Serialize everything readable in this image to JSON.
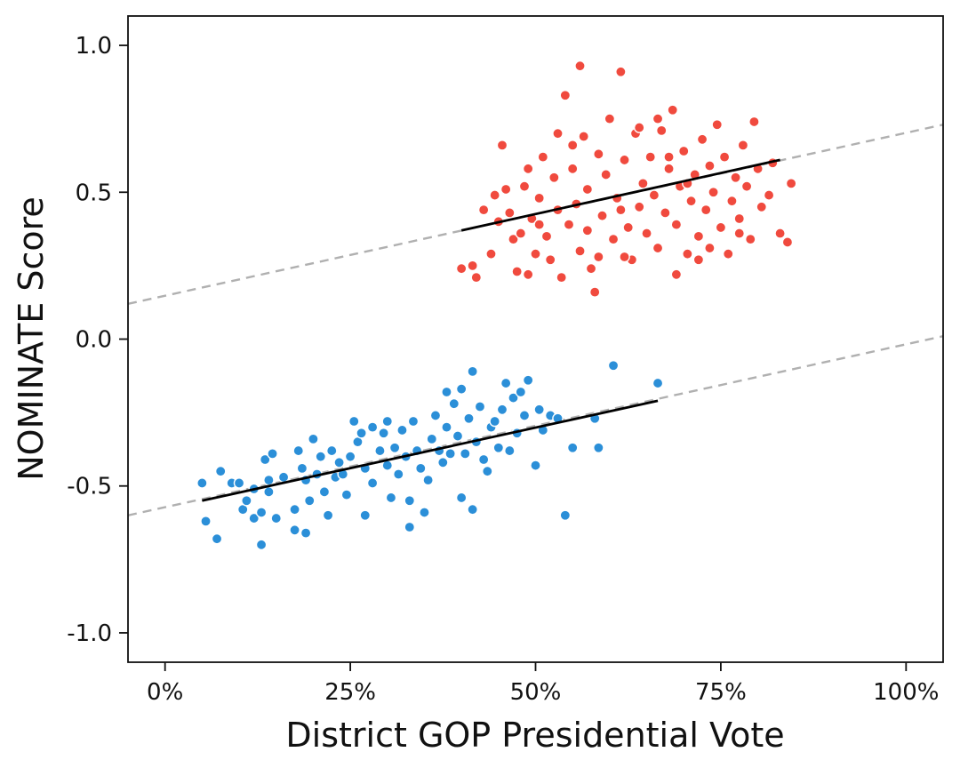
{
  "chart_data": {
    "type": "scatter",
    "title": "",
    "xlabel": "District GOP Presidential Vote",
    "ylabel": "NOMINATE Score",
    "xlim": [
      -0.05,
      1.05
    ],
    "ylim": [
      -1.1,
      1.1
    ],
    "x_ticks": [
      0,
      0.25,
      0.5,
      0.75,
      1.0
    ],
    "x_tick_labels": [
      "0%",
      "25%",
      "50%",
      "75%",
      "100%"
    ],
    "y_ticks": [
      -1.0,
      -0.5,
      0.0,
      0.5,
      1.0
    ],
    "y_tick_labels": [
      "-1.0",
      "-0.5",
      "0.0",
      "0.5",
      "1.0"
    ],
    "grid": false,
    "series": [
      {
        "color": "#2b8fd8",
        "points": [
          [
            0.05,
            -0.49
          ],
          [
            0.055,
            -0.62
          ],
          [
            0.07,
            -0.68
          ],
          [
            0.075,
            -0.45
          ],
          [
            0.09,
            -0.49
          ],
          [
            0.1,
            -0.49
          ],
          [
            0.105,
            -0.58
          ],
          [
            0.11,
            -0.55
          ],
          [
            0.12,
            -0.51
          ],
          [
            0.12,
            -0.61
          ],
          [
            0.13,
            -0.7
          ],
          [
            0.13,
            -0.59
          ],
          [
            0.135,
            -0.41
          ],
          [
            0.14,
            -0.48
          ],
          [
            0.14,
            -0.52
          ],
          [
            0.145,
            -0.39
          ],
          [
            0.15,
            -0.61
          ],
          [
            0.16,
            -0.47
          ],
          [
            0.175,
            -0.58
          ],
          [
            0.175,
            -0.65
          ],
          [
            0.18,
            -0.38
          ],
          [
            0.185,
            -0.44
          ],
          [
            0.19,
            -0.66
          ],
          [
            0.19,
            -0.48
          ],
          [
            0.195,
            -0.55
          ],
          [
            0.2,
            -0.34
          ],
          [
            0.205,
            -0.46
          ],
          [
            0.21,
            -0.4
          ],
          [
            0.215,
            -0.52
          ],
          [
            0.22,
            -0.6
          ],
          [
            0.225,
            -0.38
          ],
          [
            0.23,
            -0.47
          ],
          [
            0.235,
            -0.42
          ],
          [
            0.24,
            -0.46
          ],
          [
            0.245,
            -0.53
          ],
          [
            0.25,
            -0.4
          ],
          [
            0.255,
            -0.28
          ],
          [
            0.26,
            -0.35
          ],
          [
            0.265,
            -0.32
          ],
          [
            0.27,
            -0.44
          ],
          [
            0.27,
            -0.6
          ],
          [
            0.28,
            -0.3
          ],
          [
            0.28,
            -0.49
          ],
          [
            0.29,
            -0.38
          ],
          [
            0.295,
            -0.32
          ],
          [
            0.3,
            -0.28
          ],
          [
            0.3,
            -0.43
          ],
          [
            0.305,
            -0.54
          ],
          [
            0.31,
            -0.37
          ],
          [
            0.315,
            -0.46
          ],
          [
            0.32,
            -0.31
          ],
          [
            0.325,
            -0.4
          ],
          [
            0.33,
            -0.55
          ],
          [
            0.33,
            -0.64
          ],
          [
            0.335,
            -0.28
          ],
          [
            0.34,
            -0.38
          ],
          [
            0.345,
            -0.44
          ],
          [
            0.35,
            -0.59
          ],
          [
            0.355,
            -0.48
          ],
          [
            0.36,
            -0.34
          ],
          [
            0.365,
            -0.26
          ],
          [
            0.37,
            -0.38
          ],
          [
            0.375,
            -0.42
          ],
          [
            0.38,
            -0.18
          ],
          [
            0.38,
            -0.3
          ],
          [
            0.385,
            -0.39
          ],
          [
            0.39,
            -0.22
          ],
          [
            0.395,
            -0.33
          ],
          [
            0.4,
            -0.17
          ],
          [
            0.4,
            -0.54
          ],
          [
            0.405,
            -0.39
          ],
          [
            0.41,
            -0.27
          ],
          [
            0.415,
            -0.11
          ],
          [
            0.415,
            -0.58
          ],
          [
            0.42,
            -0.35
          ],
          [
            0.425,
            -0.23
          ],
          [
            0.43,
            -0.41
          ],
          [
            0.435,
            -0.45
          ],
          [
            0.44,
            -0.3
          ],
          [
            0.445,
            -0.28
          ],
          [
            0.45,
            -0.37
          ],
          [
            0.455,
            -0.24
          ],
          [
            0.46,
            -0.15
          ],
          [
            0.465,
            -0.38
          ],
          [
            0.47,
            -0.2
          ],
          [
            0.475,
            -0.32
          ],
          [
            0.48,
            -0.18
          ],
          [
            0.485,
            -0.26
          ],
          [
            0.49,
            -0.14
          ],
          [
            0.5,
            -0.43
          ],
          [
            0.505,
            -0.24
          ],
          [
            0.51,
            -0.31
          ],
          [
            0.52,
            -0.26
          ],
          [
            0.53,
            -0.27
          ],
          [
            0.54,
            -0.6
          ],
          [
            0.55,
            -0.37
          ],
          [
            0.58,
            -0.27
          ],
          [
            0.585,
            -0.37
          ],
          [
            0.605,
            -0.09
          ],
          [
            0.665,
            -0.15
          ]
        ]
      },
      {
        "color": "#f04a3e",
        "points": [
          [
            0.4,
            0.24
          ],
          [
            0.415,
            0.25
          ],
          [
            0.42,
            0.21
          ],
          [
            0.43,
            0.44
          ],
          [
            0.44,
            0.29
          ],
          [
            0.445,
            0.49
          ],
          [
            0.45,
            0.4
          ],
          [
            0.455,
            0.66
          ],
          [
            0.46,
            0.51
          ],
          [
            0.465,
            0.43
          ],
          [
            0.47,
            0.34
          ],
          [
            0.475,
            0.23
          ],
          [
            0.48,
            0.36
          ],
          [
            0.485,
            0.52
          ],
          [
            0.49,
            0.58
          ],
          [
            0.495,
            0.41
          ],
          [
            0.5,
            0.29
          ],
          [
            0.505,
            0.48
          ],
          [
            0.51,
            0.62
          ],
          [
            0.515,
            0.35
          ],
          [
            0.52,
            0.27
          ],
          [
            0.525,
            0.55
          ],
          [
            0.53,
            0.44
          ],
          [
            0.535,
            0.21
          ],
          [
            0.54,
            0.83
          ],
          [
            0.545,
            0.39
          ],
          [
            0.55,
            0.58
          ],
          [
            0.555,
            0.46
          ],
          [
            0.56,
            0.3
          ],
          [
            0.56,
            0.93
          ],
          [
            0.565,
            0.69
          ],
          [
            0.57,
            0.51
          ],
          [
            0.575,
            0.24
          ],
          [
            0.58,
            0.16
          ],
          [
            0.585,
            0.63
          ],
          [
            0.59,
            0.42
          ],
          [
            0.595,
            0.56
          ],
          [
            0.6,
            0.75
          ],
          [
            0.605,
            0.34
          ],
          [
            0.61,
            0.48
          ],
          [
            0.615,
            0.91
          ],
          [
            0.62,
            0.61
          ],
          [
            0.625,
            0.38
          ],
          [
            0.63,
            0.27
          ],
          [
            0.635,
            0.7
          ],
          [
            0.64,
            0.45
          ],
          [
            0.645,
            0.53
          ],
          [
            0.65,
            0.36
          ],
          [
            0.655,
            0.62
          ],
          [
            0.66,
            0.49
          ],
          [
            0.665,
            0.31
          ],
          [
            0.67,
            0.71
          ],
          [
            0.675,
            0.43
          ],
          [
            0.68,
            0.58
          ],
          [
            0.685,
            0.78
          ],
          [
            0.69,
            0.39
          ],
          [
            0.695,
            0.52
          ],
          [
            0.7,
            0.64
          ],
          [
            0.705,
            0.29
          ],
          [
            0.71,
            0.47
          ],
          [
            0.715,
            0.56
          ],
          [
            0.72,
            0.35
          ],
          [
            0.725,
            0.68
          ],
          [
            0.73,
            0.44
          ],
          [
            0.735,
            0.59
          ],
          [
            0.74,
            0.5
          ],
          [
            0.745,
            0.73
          ],
          [
            0.75,
            0.38
          ],
          [
            0.755,
            0.62
          ],
          [
            0.76,
            0.29
          ],
          [
            0.765,
            0.47
          ],
          [
            0.77,
            0.55
          ],
          [
            0.775,
            0.41
          ],
          [
            0.78,
            0.66
          ],
          [
            0.785,
            0.52
          ],
          [
            0.79,
            0.34
          ],
          [
            0.795,
            0.74
          ],
          [
            0.8,
            0.58
          ],
          [
            0.805,
            0.45
          ],
          [
            0.815,
            0.49
          ],
          [
            0.82,
            0.6
          ],
          [
            0.83,
            0.36
          ],
          [
            0.84,
            0.33
          ],
          [
            0.845,
            0.53
          ],
          [
            0.55,
            0.66
          ],
          [
            0.62,
            0.28
          ],
          [
            0.53,
            0.7
          ],
          [
            0.505,
            0.39
          ],
          [
            0.585,
            0.28
          ],
          [
            0.665,
            0.75
          ],
          [
            0.69,
            0.22
          ],
          [
            0.72,
            0.27
          ],
          [
            0.49,
            0.22
          ],
          [
            0.775,
            0.36
          ],
          [
            0.68,
            0.62
          ],
          [
            0.64,
            0.72
          ],
          [
            0.57,
            0.37
          ],
          [
            0.615,
            0.44
          ],
          [
            0.705,
            0.53
          ],
          [
            0.735,
            0.31
          ]
        ]
      }
    ],
    "fit_lines": [
      {
        "x_range": [
          0.05,
          0.665
        ],
        "y_start": -0.55,
        "y_end": -0.21
      },
      {
        "x_range": [
          0.4,
          0.83
        ],
        "y_start": 0.37,
        "y_end": 0.61
      }
    ],
    "extended_lines": [
      {
        "x_range": [
          -0.05,
          1.05
        ],
        "y_start": -0.6,
        "y_end": 0.01
      },
      {
        "x_range": [
          -0.05,
          1.05
        ],
        "y_start": 0.12,
        "y_end": 0.73
      }
    ]
  }
}
